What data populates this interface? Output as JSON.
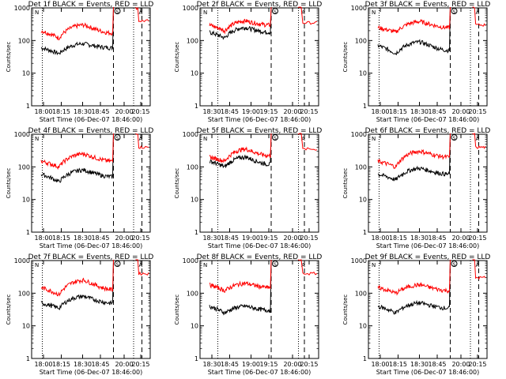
{
  "figure": {
    "xlabel": "Start Time (06-Dec-07 18:46:00)",
    "ylabel": "Counts/sec",
    "series_colors": {
      "events": "#000000",
      "lld": "#ff0000"
    },
    "marker_labels": [
      "N",
      "S",
      "A"
    ]
  },
  "chart_data": [
    {
      "type": "line",
      "title": "Det 1f BLACK = Events, RED = LLD",
      "x_ticks": [
        "18:00",
        "18:15",
        "18:30",
        "18:45",
        "20:00",
        "20:15"
      ],
      "y_ticks": [
        "1",
        "10",
        "100",
        "1000"
      ],
      "yscale": "log",
      "ylim": [
        1,
        1000
      ],
      "series": [
        {
          "name": "BLACK = Events",
          "key": "events",
          "shape": "hump",
          "start": 60,
          "trough": 40,
          "peak": 80,
          "end": 60,
          "spike": 1200
        },
        {
          "name": "RED = LLD",
          "key": "lld",
          "shape": "hump",
          "start": 200,
          "trough": 120,
          "peak": 300,
          "end": 170,
          "spike": 1100,
          "late": 400
        }
      ],
      "vlines": {
        "dotted": [
          0.09,
          0.86
        ],
        "dashed": [
          0.69,
          0.93
        ]
      }
    },
    {
      "type": "line",
      "title": "Det 2f BLACK = Events, RED = LLD",
      "x_ticks": [
        "18:30",
        "18:45",
        "19:00",
        "19:15",
        "20:00",
        "20:15"
      ],
      "y_ticks": [
        "1",
        "10",
        "100",
        "1000"
      ],
      "yscale": "log",
      "ylim": [
        1,
        1000
      ],
      "series": [
        {
          "name": "BLACK = Events",
          "key": "events",
          "shape": "hump",
          "start": 180,
          "trough": 120,
          "peak": 250,
          "end": 180,
          "spike": 1200
        },
        {
          "name": "RED = LLD",
          "key": "lld",
          "shape": "hump",
          "start": 300,
          "trough": 200,
          "peak": 400,
          "end": 300,
          "spike": 1200,
          "late": 350
        }
      ],
      "vlines": {
        "dotted": [
          0.15,
          0.83
        ],
        "dashed": [
          0.6,
          0.88
        ]
      }
    },
    {
      "type": "line",
      "title": "Det 3f BLACK = Events, RED = LLD",
      "x_ticks": [
        "18:00",
        "18:15",
        "18:30",
        "18:45",
        "20:00",
        "20:15"
      ],
      "y_ticks": [
        "1",
        "10",
        "100",
        "1000"
      ],
      "yscale": "log",
      "ylim": [
        1,
        1000
      ],
      "series": [
        {
          "name": "BLACK = Events",
          "key": "events",
          "shape": "hump",
          "start": 70,
          "trough": 40,
          "peak": 90,
          "end": 50,
          "spike": 1200
        },
        {
          "name": "RED = LLD",
          "key": "lld",
          "shape": "hump",
          "start": 250,
          "trough": 180,
          "peak": 380,
          "end": 250,
          "spike": 1200,
          "late": 300
        }
      ],
      "vlines": {
        "dotted": [
          0.09,
          0.86
        ],
        "dashed": [
          0.69,
          0.93
        ]
      }
    },
    {
      "type": "line",
      "title": "Det 4f BLACK = Events, RED = LLD",
      "x_ticks": [
        "18:00",
        "18:15",
        "18:30",
        "18:45",
        "20:00",
        "20:15"
      ],
      "y_ticks": [
        "1",
        "10",
        "100",
        "1000"
      ],
      "yscale": "log",
      "ylim": [
        1,
        1000
      ],
      "series": [
        {
          "name": "BLACK = Events",
          "key": "events",
          "shape": "hump",
          "start": 60,
          "trough": 35,
          "peak": 80,
          "end": 50,
          "spike": 1200
        },
        {
          "name": "RED = LLD",
          "key": "lld",
          "shape": "hump",
          "start": 150,
          "trough": 100,
          "peak": 250,
          "end": 150,
          "spike": 1200,
          "late": 400
        }
      ],
      "vlines": {
        "dotted": [
          0.09,
          0.86
        ],
        "dashed": [
          0.69,
          0.93
        ]
      }
    },
    {
      "type": "line",
      "title": "Det 5f BLACK = Events, RED = LLD",
      "x_ticks": [
        "18:30",
        "18:45",
        "19:00",
        "19:15",
        "20:00",
        "20:15"
      ],
      "y_ticks": [
        "1",
        "10",
        "100",
        "1000"
      ],
      "yscale": "log",
      "ylim": [
        1,
        1000
      ],
      "series": [
        {
          "name": "BLACK = Events",
          "key": "events",
          "shape": "hump",
          "start": 150,
          "trough": 100,
          "peak": 200,
          "end": 120,
          "spike": 1200
        },
        {
          "name": "RED = LLD",
          "key": "lld",
          "shape": "hump",
          "start": 200,
          "trough": 150,
          "peak": 350,
          "end": 220,
          "spike": 1200,
          "late": 350
        }
      ],
      "vlines": {
        "dotted": [
          0.15,
          0.83
        ],
        "dashed": [
          0.6,
          0.88
        ]
      }
    },
    {
      "type": "line",
      "title": "Det 6f BLACK = Events, RED = LLD",
      "x_ticks": [
        "18:00",
        "18:15",
        "18:30",
        "18:45",
        "20:00",
        "20:15"
      ],
      "y_ticks": [
        "1",
        "10",
        "100",
        "1000"
      ],
      "yscale": "log",
      "ylim": [
        1,
        1000
      ],
      "series": [
        {
          "name": "BLACK = Events",
          "key": "events",
          "shape": "hump",
          "start": 60,
          "trough": 40,
          "peak": 90,
          "end": 60,
          "spike": 1200
        },
        {
          "name": "RED = LLD",
          "key": "lld",
          "shape": "hump",
          "start": 150,
          "trough": 100,
          "peak": 300,
          "end": 200,
          "spike": 1200,
          "late": 400
        }
      ],
      "vlines": {
        "dotted": [
          0.09,
          0.86
        ],
        "dashed": [
          0.69,
          0.93
        ]
      }
    },
    {
      "type": "line",
      "title": "Det 7f BLACK = Events, RED = LLD",
      "x_ticks": [
        "18:00",
        "18:15",
        "18:30",
        "18:45",
        "20:00",
        "20:15"
      ],
      "y_ticks": [
        "1",
        "10",
        "100",
        "1000"
      ],
      "yscale": "log",
      "ylim": [
        1,
        1000
      ],
      "series": [
        {
          "name": "BLACK = Events",
          "key": "events",
          "shape": "hump",
          "start": 50,
          "trough": 35,
          "peak": 80,
          "end": 50,
          "spike": 1200
        },
        {
          "name": "RED = LLD",
          "key": "lld",
          "shape": "hump",
          "start": 150,
          "trough": 90,
          "peak": 250,
          "end": 130,
          "spike": 1200,
          "late": 400
        }
      ],
      "vlines": {
        "dotted": [
          0.09,
          0.86
        ],
        "dashed": [
          0.69,
          0.93
        ]
      }
    },
    {
      "type": "line",
      "title": "Det 8f BLACK = Events, RED = LLD",
      "x_ticks": [
        "18:30",
        "18:45",
        "19:00",
        "19:15",
        "20:00",
        "20:15"
      ],
      "y_ticks": [
        "1",
        "10",
        "100",
        "1000"
      ],
      "yscale": "log",
      "ylim": [
        1,
        1000
      ],
      "series": [
        {
          "name": "BLACK = Events",
          "key": "events",
          "shape": "hump",
          "start": 40,
          "trough": 25,
          "peak": 40,
          "end": 30,
          "spike": 1200
        },
        {
          "name": "RED = LLD",
          "key": "lld",
          "shape": "hump",
          "start": 180,
          "trough": 120,
          "peak": 200,
          "end": 150,
          "spike": 1200,
          "late": 400
        }
      ],
      "vlines": {
        "dotted": [
          0.15,
          0.83
        ],
        "dashed": [
          0.6,
          0.88
        ]
      }
    },
    {
      "type": "line",
      "title": "Det 9f BLACK = Events, RED = LLD",
      "x_ticks": [
        "18:00",
        "18:15",
        "18:30",
        "18:45",
        "20:00",
        "20:15"
      ],
      "y_ticks": [
        "1",
        "10",
        "100",
        "1000"
      ],
      "yscale": "log",
      "ylim": [
        1,
        1000
      ],
      "series": [
        {
          "name": "BLACK = Events",
          "key": "events",
          "shape": "hump",
          "start": 40,
          "trough": 25,
          "peak": 50,
          "end": 35,
          "spike": 1200
        },
        {
          "name": "RED = LLD",
          "key": "lld",
          "shape": "hump",
          "start": 150,
          "trough": 100,
          "peak": 180,
          "end": 120,
          "spike": 1200,
          "late": 300
        }
      ],
      "vlines": {
        "dotted": [
          0.09,
          0.86
        ],
        "dashed": [
          0.69,
          0.93
        ]
      }
    }
  ]
}
